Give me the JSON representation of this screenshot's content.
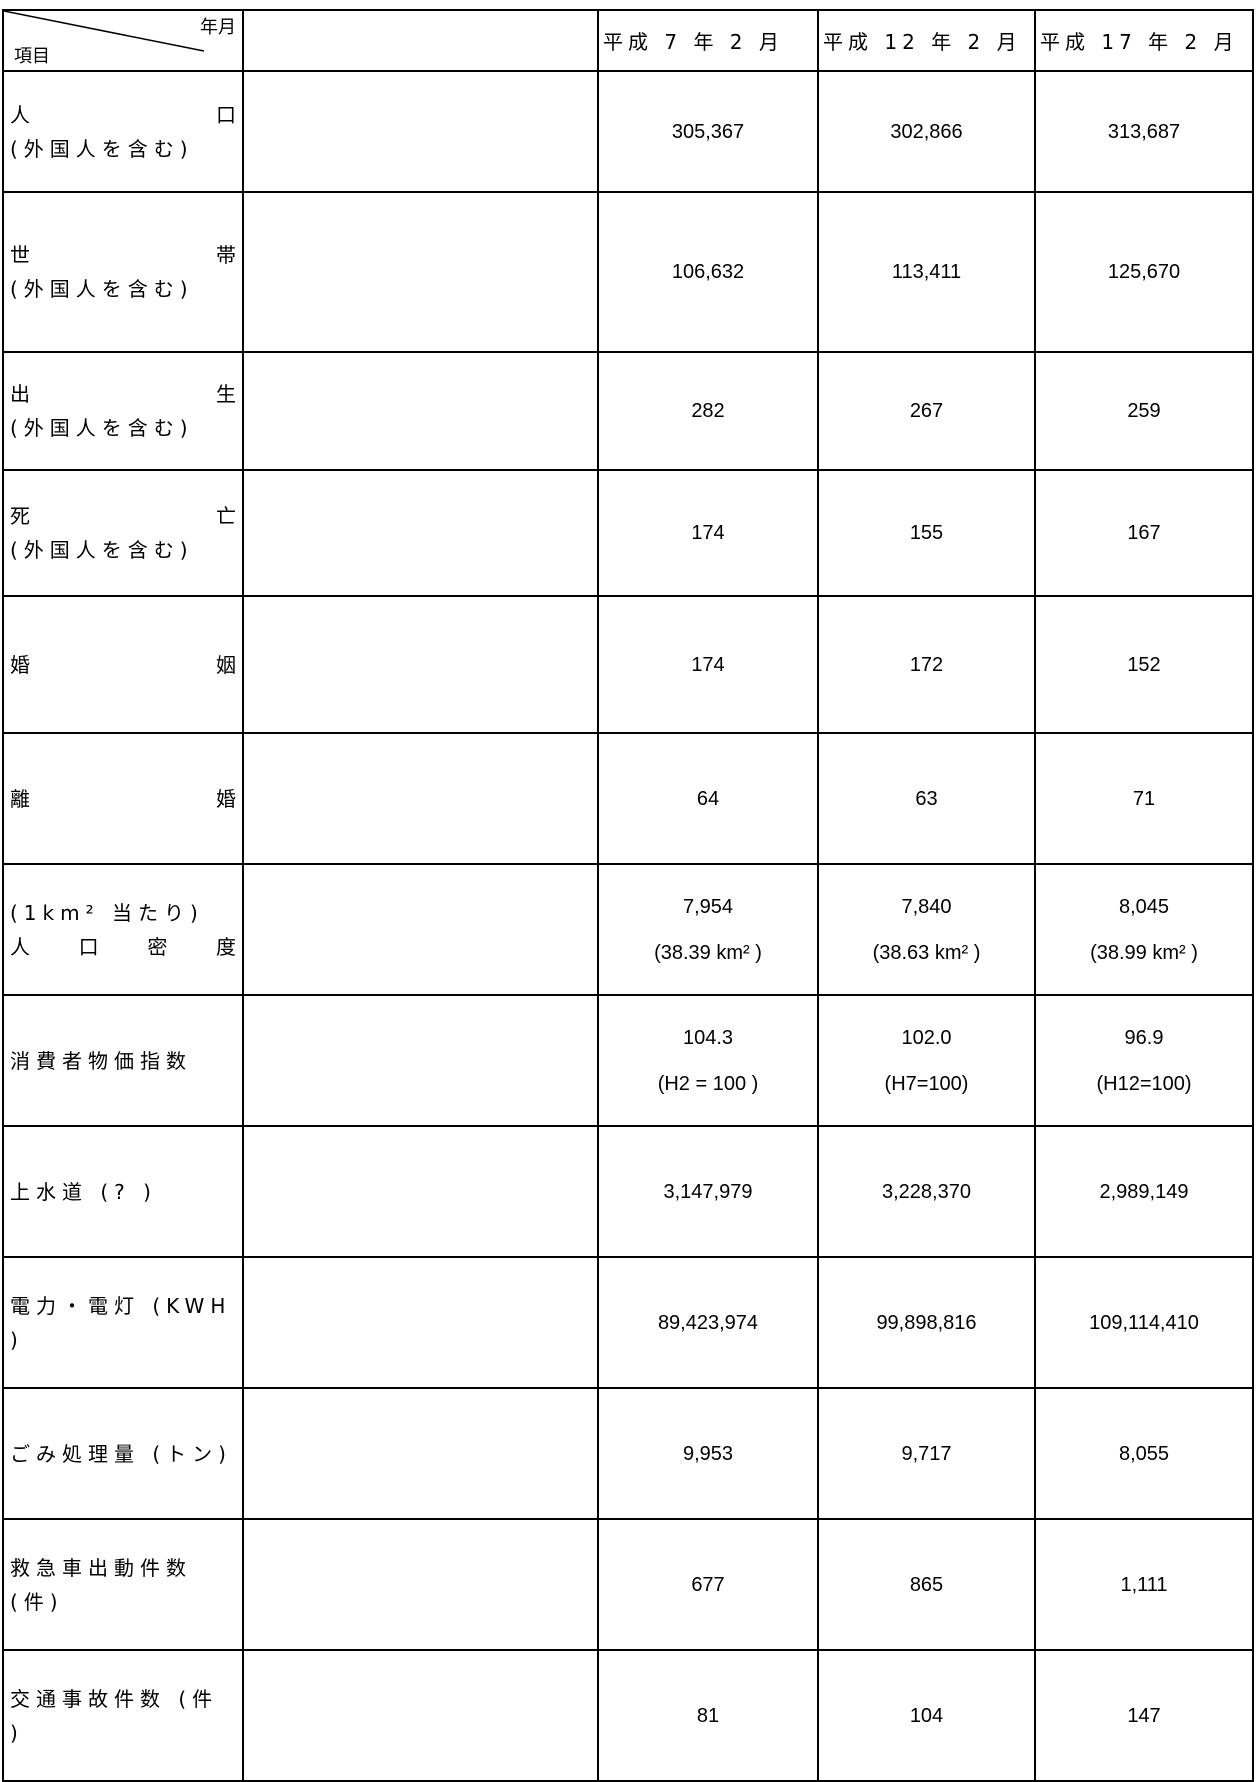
{
  "header": {
    "corner_top": "年月",
    "corner_bottom": "項目",
    "columns": [
      "平成 7 年 2 月",
      "平成 12 年 2 月",
      "平成 17 年 2 月"
    ]
  },
  "rows": [
    {
      "label": [
        "人 口",
        "(外国人を含む)"
      ],
      "values": [
        [
          "305,367"
        ],
        [
          "302,866"
        ],
        [
          "313,687"
        ]
      ]
    },
    {
      "label": [
        "世 帯",
        "(外国人を含む)"
      ],
      "values": [
        [
          "106,632"
        ],
        [
          "113,411"
        ],
        [
          "125,670"
        ]
      ]
    },
    {
      "label": [
        "出 生",
        "(外国人を含む)"
      ],
      "values": [
        [
          "282"
        ],
        [
          "267"
        ],
        [
          "259"
        ]
      ]
    },
    {
      "label": [
        "死 亡",
        "(外国人を含む)"
      ],
      "values": [
        [
          "174"
        ],
        [
          "155"
        ],
        [
          "167"
        ]
      ]
    },
    {
      "label": [
        "婚 姻"
      ],
      "values": [
        [
          "174"
        ],
        [
          "172"
        ],
        [
          "152"
        ]
      ]
    },
    {
      "label": [
        "離 婚"
      ],
      "values": [
        [
          "64"
        ],
        [
          "63"
        ],
        [
          "71"
        ]
      ]
    },
    {
      "label": [
        "(1km² 当たり)",
        "人 口 密 度"
      ],
      "values": [
        [
          "7,954",
          "(38.39 km² )"
        ],
        [
          "7,840",
          "(38.63 km² )"
        ],
        [
          "8,045",
          "(38.99 km² )"
        ]
      ]
    },
    {
      "label": [
        "消費者物価指数"
      ],
      "values": [
        [
          "104.3",
          "(H2 = 100 )"
        ],
        [
          "102.0",
          "(H7=100)"
        ],
        [
          "96.9",
          "(H12=100)"
        ]
      ]
    },
    {
      "label": [
        "上水道 (? )"
      ],
      "values": [
        [
          "3,147,979"
        ],
        [
          "3,228,370"
        ],
        [
          "2,989,149"
        ]
      ]
    },
    {
      "label": [
        "電力・電灯 (KWH )"
      ],
      "values": [
        [
          "89,423,974"
        ],
        [
          "99,898,816"
        ],
        [
          "109,114,410"
        ]
      ]
    },
    {
      "label": [
        "ごみ処理量 (トン)"
      ],
      "values": [
        [
          "9,953"
        ],
        [
          "9,717"
        ],
        [
          "8,055"
        ]
      ]
    },
    {
      "label": [
        "救急車出動件数 (件)"
      ],
      "values": [
        [
          "677"
        ],
        [
          "865"
        ],
        [
          "1,111"
        ]
      ]
    },
    {
      "label": [
        "交通事故件数 (件 )"
      ],
      "values": [
        [
          "81"
        ],
        [
          "104"
        ],
        [
          "147"
        ]
      ]
    }
  ]
}
